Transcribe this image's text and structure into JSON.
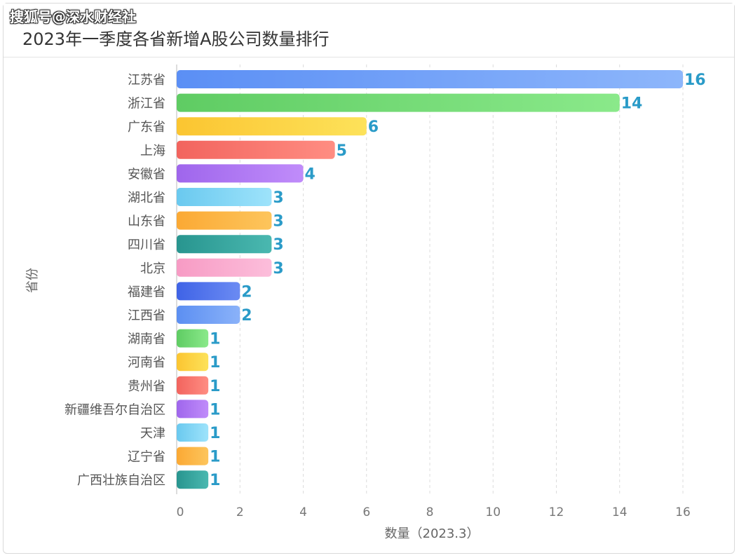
{
  "watermark": "搜狐号@深水财经社",
  "colors": {
    "label": "#2a9bc8",
    "grid": "#dcdcdc"
  },
  "chart_data": {
    "type": "bar",
    "orientation": "horizontal",
    "title": "2023年一季度各省新增A股公司数量排行",
    "xlabel": "数量（2023.3）",
    "ylabel": "省份",
    "xlim": [
      0,
      16
    ],
    "xticks": [
      0,
      2,
      4,
      6,
      8,
      10,
      12,
      14,
      16
    ],
    "grid": "vertical dashed",
    "categories": [
      "江苏省",
      "浙江省",
      "广东省",
      "上海",
      "安徽省",
      "湖北省",
      "山东省",
      "四川省",
      "北京",
      "福建省",
      "江西省",
      "湖南省",
      "河南省",
      "贵州省",
      "新疆维吾尔自治区",
      "天津",
      "辽宁省",
      "广西壮族自治区"
    ],
    "values": [
      16,
      14,
      6,
      5,
      4,
      3,
      3,
      3,
      3,
      2,
      2,
      1,
      1,
      1,
      1,
      1,
      1,
      1
    ],
    "bar_colors": [
      [
        "#5b8ff5",
        "#8db6fb"
      ],
      [
        "#5fcc63",
        "#8ae98a"
      ],
      [
        "#fbc531",
        "#fde25a"
      ],
      [
        "#f2645e",
        "#ff8d82"
      ],
      [
        "#9f66ec",
        "#c08cfa"
      ],
      [
        "#6ac9ef",
        "#9ee3fb"
      ],
      [
        "#fba934",
        "#fdc55c"
      ],
      [
        "#28958f",
        "#4ab8b0"
      ],
      [
        "#f79bc4",
        "#fcbedb"
      ],
      [
        "#3f63e6",
        "#6b8bf3"
      ],
      [
        "#5c8ff2",
        "#8ab2f9"
      ],
      [
        "#5fcc63",
        "#8ae98a"
      ],
      [
        "#fbc531",
        "#fde25a"
      ],
      [
        "#f2645e",
        "#ff8d82"
      ],
      [
        "#9f66ec",
        "#c08cfa"
      ],
      [
        "#6ac9ef",
        "#9ee3fb"
      ],
      [
        "#fba934",
        "#fdc55c"
      ],
      [
        "#28958f",
        "#4ab8b0"
      ]
    ]
  }
}
